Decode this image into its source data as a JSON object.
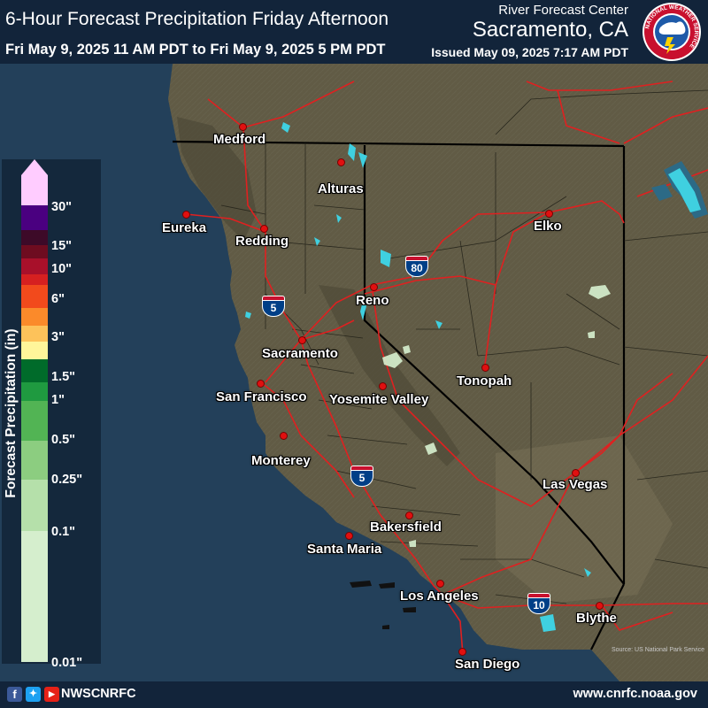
{
  "header": {
    "title": "6-Hour Forecast Precipitation Friday Afternoon",
    "valid_period": "Fri May 9, 2025 11 AM PDT to Fri May 9, 2025 5 PM PDT",
    "center_label": "River Forecast Center",
    "center_city": "Sacramento, CA",
    "issued": "Issued May 09, 2025 7:17 AM PDT",
    "logo_text": "NATIONAL WEATHER SERVICE"
  },
  "map": {
    "source": "Source: US National Park Service",
    "cities": [
      {
        "name": "Medford"
      },
      {
        "name": "Alturas"
      },
      {
        "name": "Eureka"
      },
      {
        "name": "Redding"
      },
      {
        "name": "Elko"
      },
      {
        "name": "Reno"
      },
      {
        "name": "Sacramento"
      },
      {
        "name": "Tonopah"
      },
      {
        "name": "San Francisco"
      },
      {
        "name": "Yosemite Valley"
      },
      {
        "name": "Monterey"
      },
      {
        "name": "Las Vegas"
      },
      {
        "name": "Bakersfield"
      },
      {
        "name": "Santa Maria"
      },
      {
        "name": "Los Angeles"
      },
      {
        "name": "Blythe"
      },
      {
        "name": "San Diego"
      }
    ],
    "interstates": [
      {
        "number": "80"
      },
      {
        "number": "5"
      },
      {
        "number": "5"
      },
      {
        "number": "10"
      }
    ]
  },
  "legend": {
    "title": "Forecast Precipitation (in)",
    "ticks": [
      "30\"",
      "15\"",
      "10\"",
      "6\"",
      "3\"",
      "1.5\"",
      "1\"",
      "0.5\"",
      "0.25\"",
      "0.1\"",
      "0.01\""
    ],
    "bands": [
      {
        "color": "#ffccff",
        "from": "30\"",
        "to": null
      },
      {
        "color": "#4a0080",
        "from": "15\"",
        "to": "30\""
      },
      {
        "color": "#3d0a28",
        "from": "15\"",
        "to": "15\""
      },
      {
        "color": "#6e0c20",
        "from": "10\"",
        "to": "15\""
      },
      {
        "color": "#a8102a",
        "from": "6\"",
        "to": "10\""
      },
      {
        "color": "#d62020",
        "from": "6\"",
        "to": "6\""
      },
      {
        "color": "#f24a1c",
        "from": "3\"",
        "to": "6\""
      },
      {
        "color": "#fb8a2a",
        "from": "3\"",
        "to": "3\""
      },
      {
        "color": "#fdc25a",
        "from": "1.5\"",
        "to": "3\""
      },
      {
        "color": "#fff59a",
        "from": "1.5\"",
        "to": "1.5\""
      },
      {
        "color": "#006b2a",
        "from": "1\"",
        "to": "1.5\""
      },
      {
        "color": "#1f9a40",
        "from": "0.5\"",
        "to": "1\""
      },
      {
        "color": "#52b454",
        "from": "0.25\"",
        "to": "0.5\""
      },
      {
        "color": "#8ccd80",
        "from": "0.1\"",
        "to": "0.25\""
      },
      {
        "color": "#b5e0aa",
        "from": "0.1\"",
        "to": "0.1\""
      },
      {
        "color": "#d5eecd",
        "from": "0.01\"",
        "to": "0.1\""
      }
    ]
  },
  "footer": {
    "social_handle": "NWSCNRFC",
    "website": "www.cnrfc.noaa.gov",
    "social_icons": [
      "facebook-icon",
      "twitter-icon",
      "youtube-icon"
    ]
  },
  "colors": {
    "header_bg": "#12243a",
    "ocean": "#23405a",
    "land": "#5f5a44",
    "roads": "#e02020",
    "lakes": "#3fd0e0",
    "light_precip": "#d5eecd",
    "city_dot": "#e01010"
  }
}
